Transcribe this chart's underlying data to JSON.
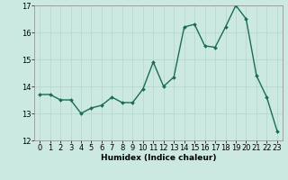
{
  "x": [
    0,
    1,
    2,
    3,
    4,
    5,
    6,
    7,
    8,
    9,
    10,
    11,
    12,
    13,
    14,
    15,
    16,
    17,
    18,
    19,
    20,
    21,
    22,
    23
  ],
  "y": [
    13.7,
    13.7,
    13.5,
    13.5,
    13.0,
    13.2,
    13.3,
    13.6,
    13.4,
    13.4,
    13.9,
    14.9,
    14.0,
    14.35,
    16.2,
    16.3,
    15.5,
    15.45,
    16.2,
    17.0,
    16.5,
    14.4,
    13.6,
    12.35
  ],
  "line_color": "#1a6b5a",
  "marker": "D",
  "marker_size": 2,
  "line_width": 1.0,
  "bg_color": "#cce9e1",
  "grid_color": "#b8d8d0",
  "xlabel": "Humidex (Indice chaleur)",
  "xlim": [
    -0.5,
    23.5
  ],
  "ylim": [
    12,
    17
  ],
  "yticks": [
    12,
    13,
    14,
    15,
    16,
    17
  ],
  "xticks": [
    0,
    1,
    2,
    3,
    4,
    5,
    6,
    7,
    8,
    9,
    10,
    11,
    12,
    13,
    14,
    15,
    16,
    17,
    18,
    19,
    20,
    21,
    22,
    23
  ],
  "xlabel_fontsize": 6.5,
  "tick_fontsize": 6.0
}
